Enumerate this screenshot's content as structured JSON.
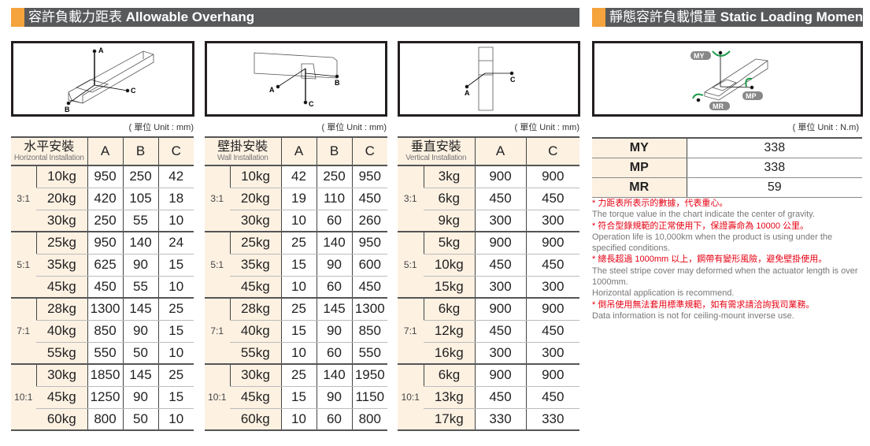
{
  "left_header": {
    "zh": "容許負載力距表",
    "en": "Allowable Overhang"
  },
  "right_header": {
    "zh": "靜態容許負載慣量",
    "en": "Static Loading Moment"
  },
  "unit_mm": "( 單位 Unit : mm)",
  "unit_nm": "( 單位 Unit : N.m)",
  "diagram_labels": {
    "a": "A",
    "b": "B",
    "c": "C",
    "my": "MY",
    "mp": "MP",
    "mr": "MR"
  },
  "colors": {
    "accent": "#f5a33d",
    "header_bar": "#58595b",
    "cell_bg": "#fdf1e2",
    "note_red": "#e60012"
  },
  "tables": [
    {
      "title_zh": "水平安裝",
      "title_en": "Horizontal Installation",
      "columns": [
        "A",
        "B",
        "C"
      ],
      "groups": [
        {
          "ratio": "3:1",
          "rows": [
            [
              "10kg",
              "950",
              "250",
              "42"
            ],
            [
              "20kg",
              "420",
              "105",
              "18"
            ],
            [
              "30kg",
              "250",
              "55",
              "10"
            ]
          ]
        },
        {
          "ratio": "5:1",
          "rows": [
            [
              "25kg",
              "950",
              "140",
              "24"
            ],
            [
              "35kg",
              "625",
              "90",
              "15"
            ],
            [
              "45kg",
              "450",
              "55",
              "10"
            ]
          ]
        },
        {
          "ratio": "7:1",
          "rows": [
            [
              "28kg",
              "1300",
              "145",
              "25"
            ],
            [
              "40kg",
              "850",
              "90",
              "15"
            ],
            [
              "55kg",
              "550",
              "50",
              "10"
            ]
          ]
        },
        {
          "ratio": "10:1",
          "rows": [
            [
              "30kg",
              "1850",
              "145",
              "25"
            ],
            [
              "45kg",
              "1250",
              "90",
              "15"
            ],
            [
              "60kg",
              "800",
              "50",
              "10"
            ]
          ]
        }
      ]
    },
    {
      "title_zh": "壁掛安裝",
      "title_en": "Wall Installation",
      "columns": [
        "A",
        "B",
        "C"
      ],
      "groups": [
        {
          "ratio": "3:1",
          "rows": [
            [
              "10kg",
              "42",
              "250",
              "950"
            ],
            [
              "20kg",
              "19",
              "110",
              "450"
            ],
            [
              "30kg",
              "10",
              "60",
              "260"
            ]
          ]
        },
        {
          "ratio": "5:1",
          "rows": [
            [
              "25kg",
              "25",
              "140",
              "950"
            ],
            [
              "35kg",
              "15",
              "90",
              "600"
            ],
            [
              "45kg",
              "10",
              "60",
              "450"
            ]
          ]
        },
        {
          "ratio": "7:1",
          "rows": [
            [
              "28kg",
              "25",
              "145",
              "1300"
            ],
            [
              "40kg",
              "15",
              "90",
              "850"
            ],
            [
              "55kg",
              "10",
              "60",
              "550"
            ]
          ]
        },
        {
          "ratio": "10:1",
          "rows": [
            [
              "30kg",
              "25",
              "140",
              "1950"
            ],
            [
              "45kg",
              "15",
              "90",
              "1150"
            ],
            [
              "60kg",
              "10",
              "60",
              "800"
            ]
          ]
        }
      ]
    },
    {
      "title_zh": "垂直安裝",
      "title_en": "Vertical Installation",
      "columns": [
        "A",
        "C"
      ],
      "groups": [
        {
          "ratio": "3:1",
          "rows": [
            [
              "3kg",
              "900",
              "900"
            ],
            [
              "6kg",
              "450",
              "450"
            ],
            [
              "9kg",
              "300",
              "300"
            ]
          ]
        },
        {
          "ratio": "5:1",
          "rows": [
            [
              "5kg",
              "900",
              "900"
            ],
            [
              "10kg",
              "450",
              "450"
            ],
            [
              "15kg",
              "300",
              "300"
            ]
          ]
        },
        {
          "ratio": "7:1",
          "rows": [
            [
              "6kg",
              "900",
              "900"
            ],
            [
              "12kg",
              "450",
              "450"
            ],
            [
              "16kg",
              "300",
              "300"
            ]
          ]
        },
        {
          "ratio": "10:1",
          "rows": [
            [
              "6kg",
              "900",
              "900"
            ],
            [
              "13kg",
              "450",
              "450"
            ],
            [
              "17kg",
              "330",
              "330"
            ]
          ]
        }
      ]
    }
  ],
  "moments": [
    {
      "name": "MY",
      "value": "338"
    },
    {
      "name": "MP",
      "value": "338"
    },
    {
      "name": "MR",
      "value": "59"
    }
  ],
  "notes": [
    {
      "zh": "* 力距表所表示的數據，代表重心。",
      "en": "The torque value in the chart indicate the center of gravity."
    },
    {
      "zh": "* 符合型錄規範的正常使用下，保證壽命為 10000 公里。",
      "en": "Operation life is 10,000km when the product is using under the specified conditions."
    },
    {
      "zh": "* 總長超過 1000mm 以上，鋼帶有變形風險，避免壁掛使用。",
      "en": "The steel stripe cover may deformed when the actuator length is over 1000mm.",
      "en2": "Horizontal application is recommend."
    },
    {
      "zh": "* 倒吊使用無法套用標準規範，如有需求請洽詢我司業務。",
      "en": "Data information is not for ceiling-mount inverse use."
    }
  ]
}
